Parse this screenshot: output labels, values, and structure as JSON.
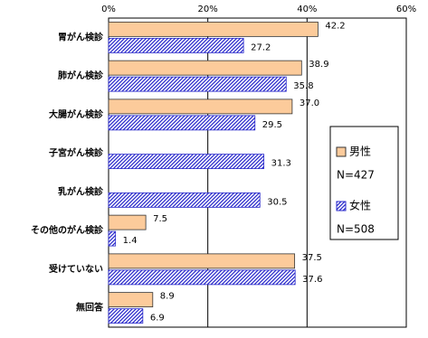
{
  "chart_data": {
    "type": "hbar",
    "categories": [
      "胃がん検診",
      "肺がん検診",
      "大腸がん検診",
      "子宮がん検診",
      "乳がん検診",
      "その他のがん検診",
      "受けていない",
      "無回答"
    ],
    "series": [
      {
        "name": "男性",
        "n_label": "N=427",
        "color": "#fccb9b",
        "hatch": false,
        "values": [
          42.2,
          38.9,
          37.0,
          null,
          null,
          7.5,
          37.5,
          8.9
        ],
        "value_labels": [
          "42.2",
          "38.9",
          "37.0",
          null,
          null,
          "7.5",
          "37.5",
          "8.9"
        ]
      },
      {
        "name": "女性",
        "n_label": "N=508",
        "color": "#2b2bcc",
        "hatch": true,
        "values": [
          27.2,
          35.8,
          29.5,
          31.3,
          30.5,
          1.4,
          37.6,
          6.9
        ],
        "value_labels": [
          "27.2",
          "35.8",
          "29.5",
          "31.3",
          "30.5",
          "1.4",
          "37.6",
          "6.9"
        ]
      }
    ],
    "xlim": [
      0,
      60
    ],
    "xticks": [
      {
        "value": 0,
        "label": "0%"
      },
      {
        "value": 20,
        "label": "20%"
      },
      {
        "value": 40,
        "label": "40%"
      },
      {
        "value": 60,
        "label": "60%"
      }
    ],
    "grid": true
  }
}
